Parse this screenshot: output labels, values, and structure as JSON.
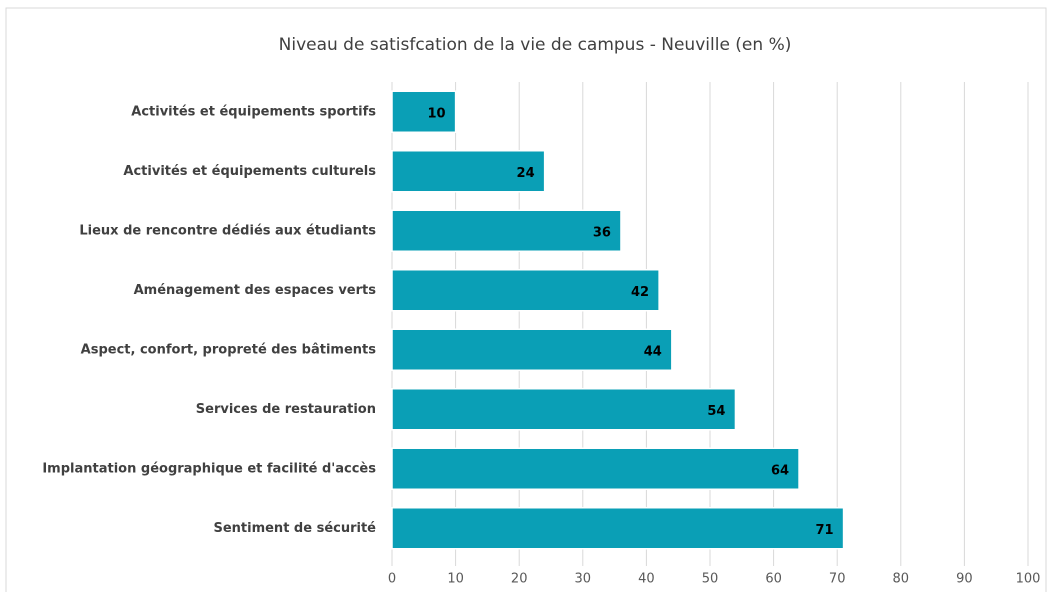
{
  "chart_data": {
    "type": "bar",
    "orientation": "horizontal",
    "title": "Niveau de satisfcation  de la vie de campus - Neuville (en %)",
    "categories": [
      "Activités et équipements sportifs",
      "Activités et équipements culturels",
      "Lieux de rencontre dédiés aux étudiants",
      "Aménagement des espaces verts",
      "Aspect, confort, propreté des bâtiments",
      "Services de restauration",
      "Implantation géographique et facilité d'accès",
      "Sentiment de sécurité"
    ],
    "values": [
      10,
      24,
      36,
      42,
      44,
      54,
      64,
      71
    ],
    "color": "#0a9fb6",
    "xlim": [
      0,
      100
    ],
    "xticks": [
      0,
      10,
      20,
      30,
      40,
      50,
      60,
      70,
      80,
      90,
      100
    ],
    "grid": true
  }
}
